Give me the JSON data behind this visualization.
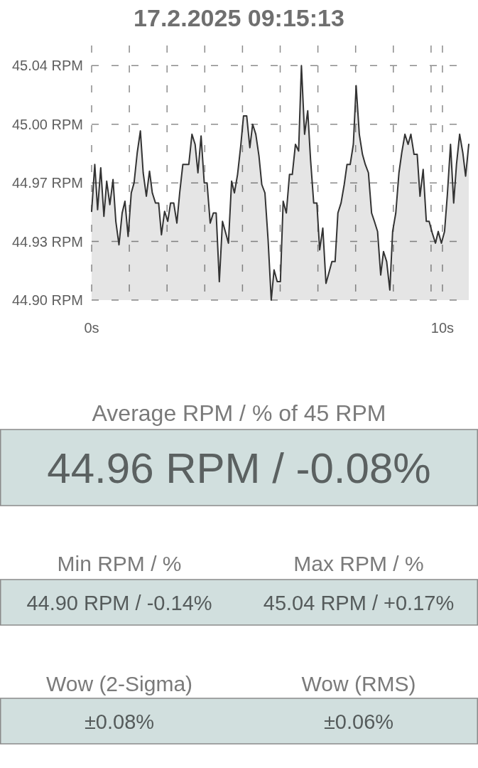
{
  "chart_data": [
    {
      "type": "area",
      "title": "17.2.2025 09:15:13",
      "x": [
        0,
        0.09,
        0.17,
        0.26,
        0.35,
        0.43,
        0.52,
        0.61,
        0.69,
        0.78,
        0.87,
        0.95,
        1.04,
        1.13,
        1.21,
        1.3,
        1.39,
        1.47,
        1.56,
        1.65,
        1.73,
        1.82,
        1.91,
        1.99,
        2.08,
        2.17,
        2.25,
        2.34,
        2.43,
        2.51,
        2.6,
        2.69,
        2.77,
        2.86,
        2.95,
        3.03,
        3.12,
        3.21,
        3.29,
        3.38,
        3.47,
        3.55,
        3.64,
        3.73,
        3.81,
        3.9,
        3.99,
        4.07,
        4.16,
        4.25,
        4.33,
        4.42,
        4.51,
        4.59,
        4.68,
        4.77,
        4.85,
        4.94,
        5.03,
        5.12,
        5.2,
        5.29,
        5.38,
        5.46,
        5.55,
        5.64,
        5.72,
        5.81,
        5.9,
        5.98,
        6.07,
        6.16,
        6.24,
        6.33,
        6.42,
        6.5,
        6.59,
        6.68,
        6.76,
        6.85,
        6.94,
        7.02,
        7.11,
        7.2,
        7.28,
        7.37,
        7.46,
        7.54,
        7.63,
        7.72,
        7.8,
        7.89,
        7.98,
        8.06,
        8.15,
        8.24,
        8.32,
        8.41,
        8.5,
        8.58,
        8.67,
        8.76,
        8.84,
        8.93,
        9.02,
        9.1,
        9.19,
        9.28,
        9.36,
        9.45,
        9.54,
        9.62,
        9.71,
        9.8,
        9.88,
        9.97,
        10.06,
        10.14,
        10.23,
        10.32,
        10.4,
        10.49,
        10.58,
        10.66,
        10.75
      ],
      "values": [
        44.953,
        44.981,
        44.954,
        44.979,
        44.95,
        44.971,
        44.957,
        44.972,
        44.947,
        44.933,
        44.952,
        44.959,
        44.938,
        44.964,
        44.97,
        44.988,
        45.001,
        44.976,
        44.962,
        44.977,
        44.964,
        44.958,
        44.958,
        44.939,
        44.953,
        44.947,
        44.958,
        44.958,
        44.946,
        44.964,
        44.981,
        44.981,
        44.981,
        44.999,
        44.993,
        44.976,
        44.998,
        44.97,
        44.97,
        44.946,
        44.952,
        44.952,
        44.911,
        44.947,
        44.941,
        44.934,
        44.971,
        44.964,
        44.975,
        44.992,
        45.01,
        45.01,
        44.991,
        45.005,
        44.999,
        44.986,
        44.969,
        44.964,
        44.936,
        44.9,
        44.918,
        44.911,
        44.911,
        44.959,
        44.952,
        44.975,
        44.975,
        44.993,
        44.989,
        45.04,
        44.999,
        45.013,
        44.984,
        44.958,
        44.958,
        44.93,
        44.943,
        44.91,
        44.916,
        44.923,
        44.923,
        44.952,
        44.958,
        44.969,
        44.981,
        44.981,
        44.993,
        45.028,
        44.999,
        44.987,
        44.981,
        44.976,
        44.952,
        44.947,
        44.941,
        44.915,
        44.929,
        44.923,
        44.906,
        44.941,
        44.952,
        44.976,
        44.988,
        44.999,
        44.993,
        44.999,
        44.987,
        44.987,
        44.962,
        44.978,
        44.947,
        44.947,
        44.94,
        44.934,
        44.941,
        44.934,
        44.941,
        44.963,
        44.993,
        44.958,
        44.981,
        44.999,
        44.988,
        44.974,
        44.993
      ],
      "color": "#333333",
      "xlim": [
        0,
        10.75
      ],
      "xticks": [
        {
          "value": 0,
          "label": "0s"
        },
        {
          "value": 1.075,
          "label": null
        },
        {
          "value": 2.15,
          "label": null
        },
        {
          "value": 3.225,
          "label": null
        },
        {
          "value": 4.3,
          "label": null
        },
        {
          "value": 5.375,
          "label": null
        },
        {
          "value": 6.45,
          "label": null
        },
        {
          "value": 7.525,
          "label": null
        },
        {
          "value": 8.6,
          "label": null
        },
        {
          "value": 9.675,
          "label": null
        },
        {
          "value": 10,
          "label": "10s"
        }
      ],
      "ylim": [
        44.9,
        45.052
      ],
      "yticks": [
        {
          "value": 44.9,
          "label": "44.90 RPM"
        },
        {
          "value": 44.935,
          "label": "44.93 RPM"
        },
        {
          "value": 44.97,
          "label": "44.97 RPM"
        },
        {
          "value": 45.005,
          "label": "45.00 RPM"
        },
        {
          "value": 45.04,
          "label": "45.04 RPM"
        }
      ],
      "grid": true
    },
    {
      "type": "other",
      "annotations": [
        "Average RPM / % of 45 RPM",
        "44.96 RPM / -0.08%",
        "Min RPM / %",
        "44.90 RPM / -0.14%",
        "Max RPM / %",
        "45.04 RPM / +0.17%",
        "Wow (2-Sigma)",
        "±0.08%",
        "Wow (RMS)",
        "±0.06%"
      ]
    }
  ]
}
